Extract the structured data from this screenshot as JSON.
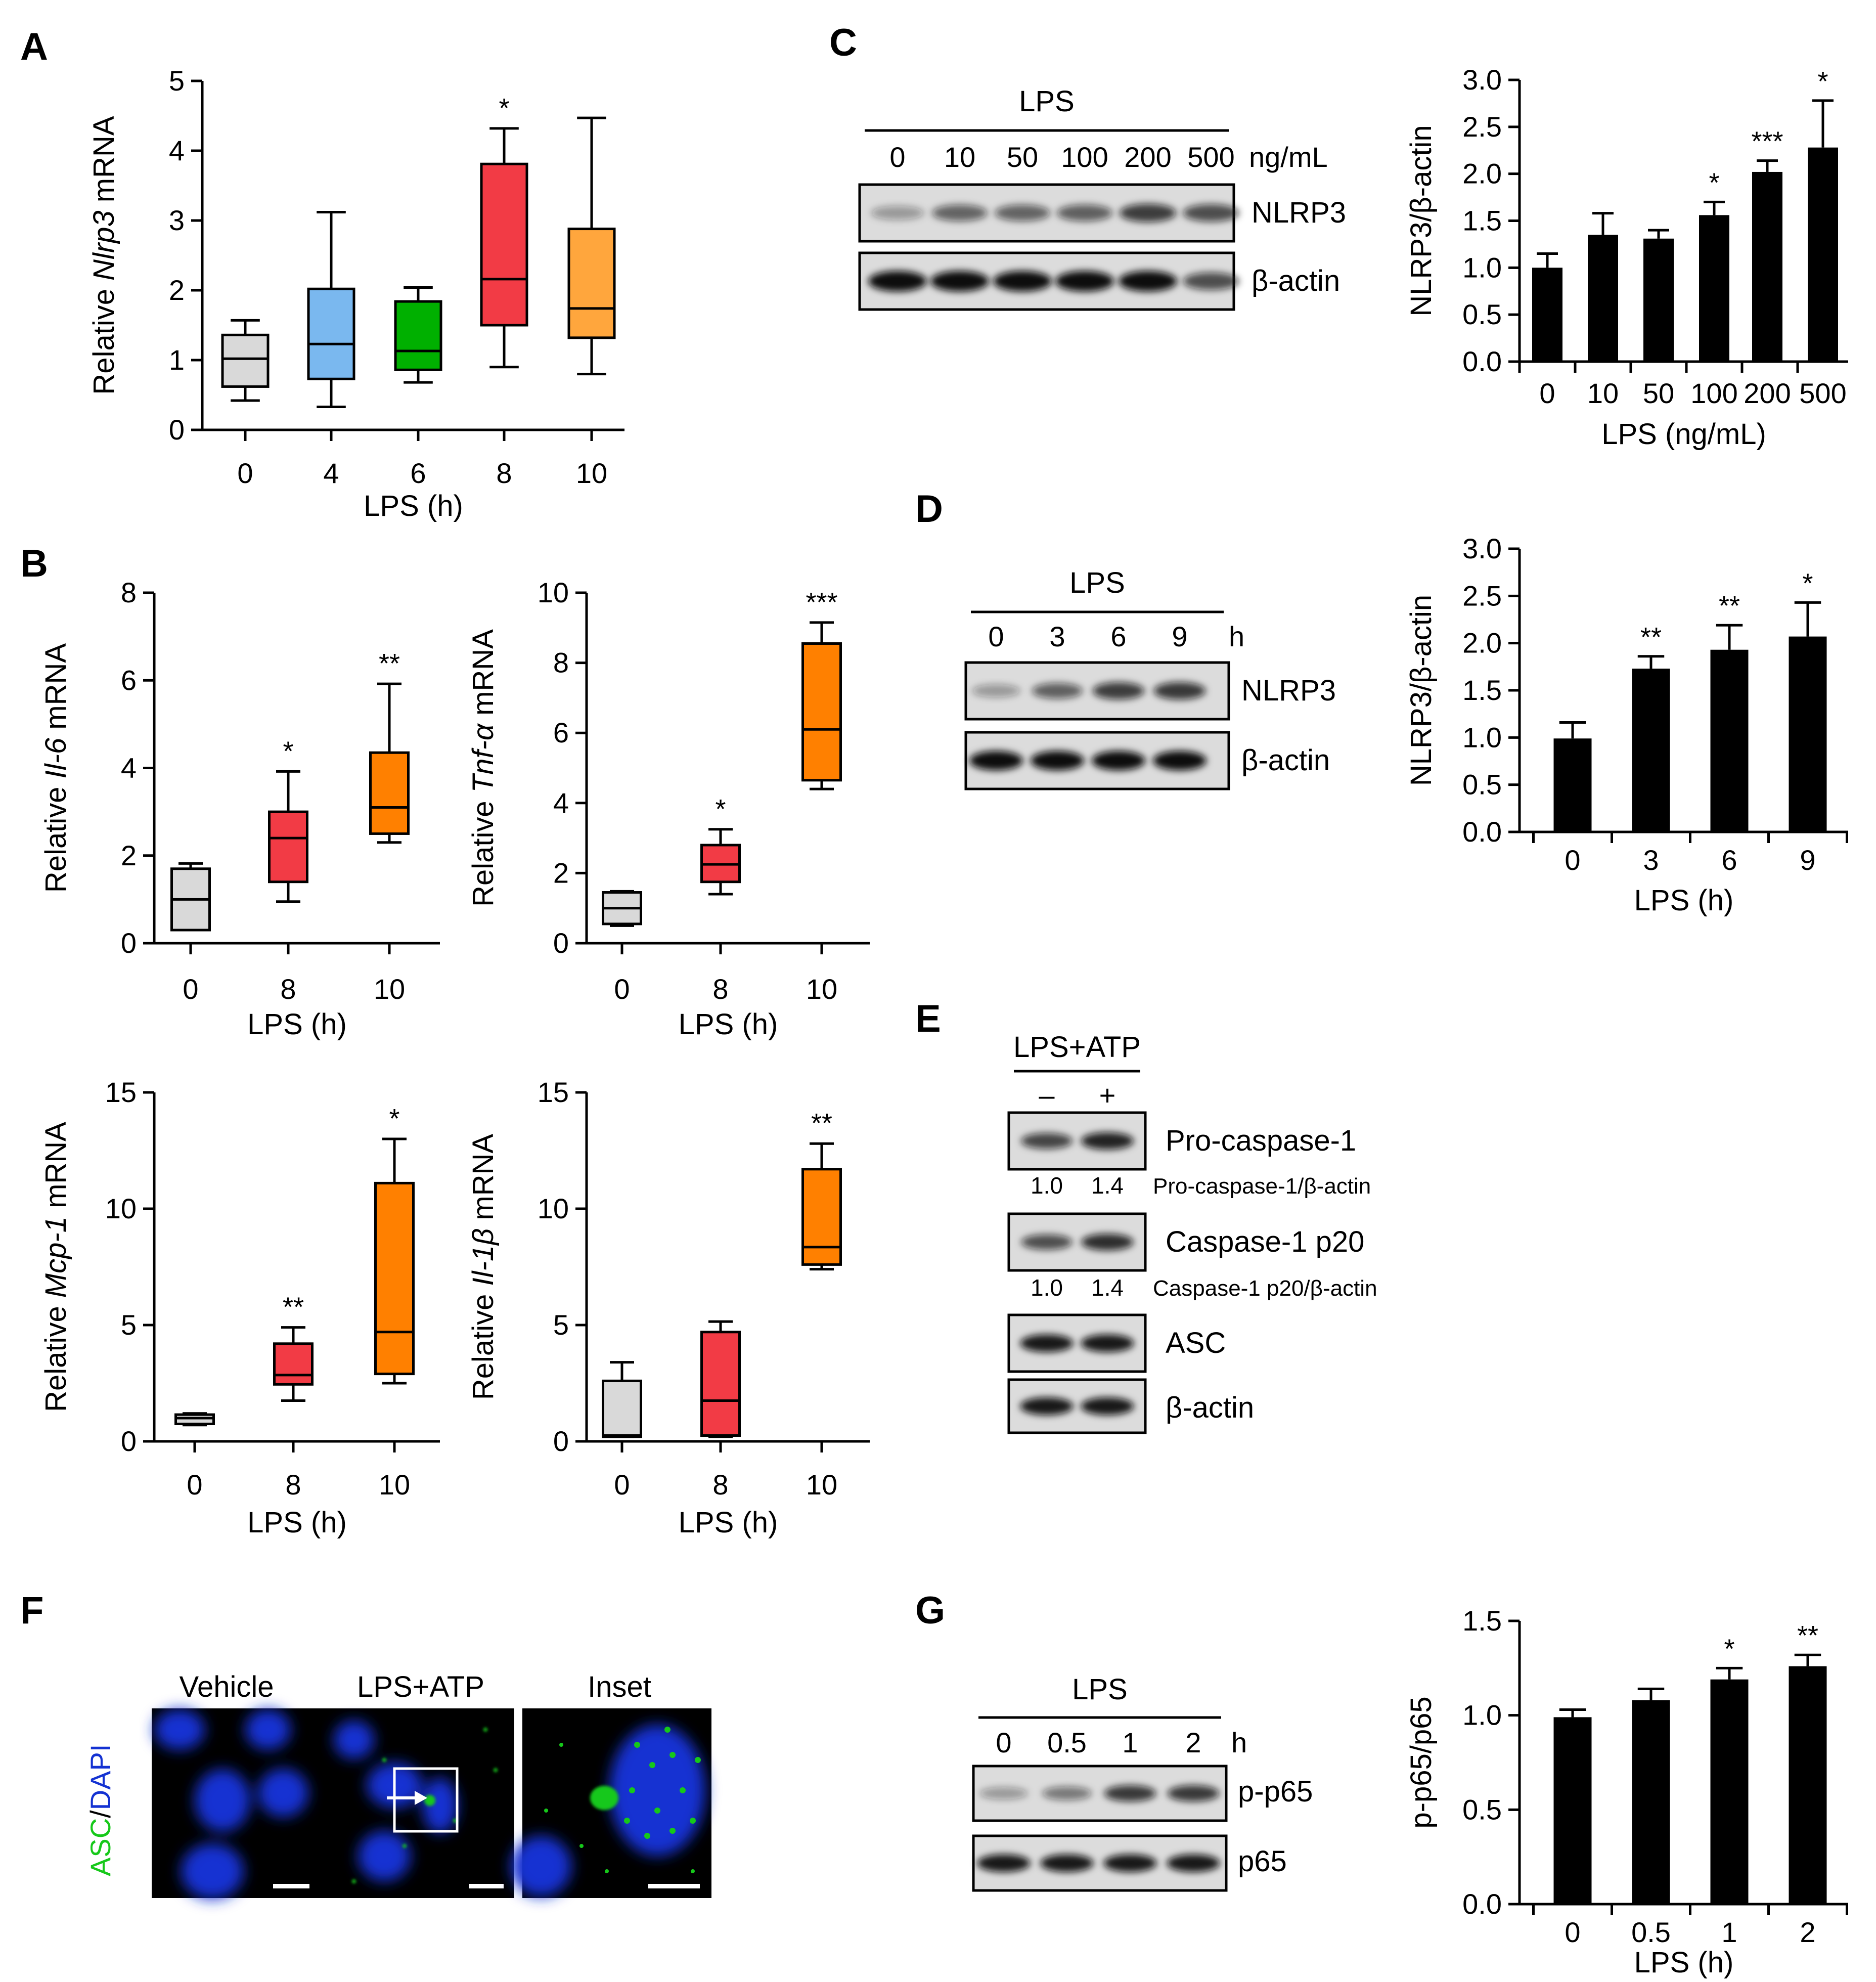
{
  "panels": {
    "A": {
      "letter": "A"
    },
    "B": {
      "letter": "B"
    },
    "C": {
      "letter": "C"
    },
    "D": {
      "letter": "D"
    },
    "E": {
      "letter": "E"
    },
    "F": {
      "letter": "F"
    },
    "G": {
      "letter": "G"
    }
  },
  "chart_data": [
    {
      "id": "A",
      "type": "box",
      "title": "",
      "xlabel": "LPS (h)",
      "ylabel": {
        "pre": "Relative ",
        "italic": "Nlrp3",
        "post": " mRNA"
      },
      "ylim": [
        0,
        5
      ],
      "yticks": [
        "0",
        "1",
        "2",
        "3",
        "4",
        "5"
      ],
      "categories": [
        "0",
        "4",
        "6",
        "8",
        "10"
      ],
      "boxes": [
        {
          "cat": "0",
          "min": 0.42,
          "q1": 0.62,
          "median": 1.02,
          "q3": 1.36,
          "max": 1.57,
          "color": "#d9d9d9",
          "sig": ""
        },
        {
          "cat": "4",
          "min": 0.33,
          "q1": 0.73,
          "median": 1.23,
          "q3": 2.02,
          "max": 3.12,
          "color": "#7ab8ef",
          "sig": ""
        },
        {
          "cat": "6",
          "min": 0.68,
          "q1": 0.86,
          "median": 1.13,
          "q3": 1.84,
          "max": 2.04,
          "color": "#00b000",
          "sig": ""
        },
        {
          "cat": "8",
          "min": 0.9,
          "q1": 1.5,
          "median": 2.16,
          "q3": 3.81,
          "max": 4.32,
          "color": "#f23b45",
          "sig": "*"
        },
        {
          "cat": "10",
          "min": 0.8,
          "q1": 1.32,
          "median": 1.74,
          "q3": 2.88,
          "max": 4.47,
          "color": "#ffa63d",
          "sig": ""
        }
      ]
    },
    {
      "id": "B1",
      "type": "box",
      "xlabel": "LPS (h)",
      "ylabel": {
        "pre": "Relative ",
        "italic": "Il-6",
        "post": " mRNA"
      },
      "ylim": [
        0,
        8
      ],
      "yticks": [
        "0",
        "2",
        "4",
        "6",
        "8"
      ],
      "categories": [
        "0",
        "8",
        "10"
      ],
      "boxes": [
        {
          "cat": "0",
          "min": 0.3,
          "q1": 0.3,
          "median": 1.0,
          "q3": 1.7,
          "max": 1.82,
          "color": "#d9d9d9",
          "sig": ""
        },
        {
          "cat": "8",
          "min": 0.95,
          "q1": 1.4,
          "median": 2.4,
          "q3": 3.0,
          "max": 3.92,
          "color": "#f23b45",
          "sig": "*"
        },
        {
          "cat": "10",
          "min": 2.3,
          "q1": 2.5,
          "median": 3.1,
          "q3": 4.35,
          "max": 5.92,
          "color": "#ff8000",
          "sig": "**"
        }
      ]
    },
    {
      "id": "B2",
      "type": "box",
      "xlabel": "LPS (h)",
      "ylabel": {
        "pre": "Relative ",
        "italic": "Tnf-α",
        "post": " mRNA"
      },
      "ylim": [
        0,
        10
      ],
      "yticks": [
        "0",
        "2",
        "4",
        "6",
        "8",
        "10"
      ],
      "categories": [
        "0",
        "8",
        "10"
      ],
      "boxes": [
        {
          "cat": "0",
          "min": 0.5,
          "q1": 0.55,
          "median": 1.0,
          "q3": 1.45,
          "max": 1.48,
          "color": "#d9d9d9",
          "sig": ""
        },
        {
          "cat": "8",
          "min": 1.4,
          "q1": 1.75,
          "median": 2.25,
          "q3": 2.8,
          "max": 3.25,
          "color": "#f23b45",
          "sig": "*"
        },
        {
          "cat": "10",
          "min": 4.4,
          "q1": 4.65,
          "median": 6.1,
          "q3": 8.55,
          "max": 9.15,
          "color": "#ff8000",
          "sig": "***"
        }
      ]
    },
    {
      "id": "B3",
      "type": "box",
      "xlabel": "LPS (h)",
      "ylabel": {
        "pre": "Relative ",
        "italic": "Mcp-1",
        "post": " mRNA"
      },
      "ylim": [
        0,
        15
      ],
      "yticks": [
        "0",
        "5",
        "10",
        "15"
      ],
      "categories": [
        "0",
        "8",
        "10"
      ],
      "boxes": [
        {
          "cat": "0",
          "min": 0.7,
          "q1": 0.75,
          "median": 1.0,
          "q3": 1.15,
          "max": 1.2,
          "color": "#d9d9d9",
          "sig": ""
        },
        {
          "cat": "8",
          "min": 1.75,
          "q1": 2.45,
          "median": 2.85,
          "q3": 4.2,
          "max": 4.9,
          "color": "#f23b45",
          "sig": "**"
        },
        {
          "cat": "10",
          "min": 2.5,
          "q1": 2.9,
          "median": 4.7,
          "q3": 11.1,
          "max": 13.0,
          "color": "#ff8000",
          "sig": "*"
        }
      ]
    },
    {
      "id": "B4",
      "type": "box",
      "xlabel": "LPS (h)",
      "ylabel": {
        "pre": "Relative ",
        "italic": "Il-1β",
        "post": " mRNA"
      },
      "ylim": [
        0,
        15
      ],
      "yticks": [
        "0",
        "5",
        "10",
        "15"
      ],
      "categories": [
        "0",
        "8",
        "10"
      ],
      "boxes": [
        {
          "cat": "0",
          "min": 0.2,
          "q1": 0.2,
          "median": 0.25,
          "q3": 2.6,
          "max": 3.4,
          "color": "#d9d9d9",
          "sig": ""
        },
        {
          "cat": "8",
          "min": 0.2,
          "q1": 0.25,
          "median": 1.75,
          "q3": 4.7,
          "max": 5.15,
          "color": "#f23b45",
          "sig": ""
        },
        {
          "cat": "10",
          "min": 7.4,
          "q1": 7.6,
          "median": 8.35,
          "q3": 11.7,
          "max": 12.8,
          "color": "#ff8000",
          "sig": "**"
        }
      ]
    },
    {
      "id": "C",
      "type": "bar",
      "xlabel": "LPS (ng/mL)",
      "ylabel": "NLRP3/β-actin",
      "ylim": [
        0,
        3.0
      ],
      "yticks": [
        "0.0",
        "0.5",
        "1.0",
        "1.5",
        "2.0",
        "2.5",
        "3.0"
      ],
      "categories": [
        "0",
        "10",
        "50",
        "100",
        "200",
        "500"
      ],
      "values": [
        1.0,
        1.35,
        1.31,
        1.56,
        2.02,
        2.28
      ],
      "errors": [
        0.15,
        0.23,
        0.09,
        0.14,
        0.12,
        0.5
      ],
      "sig": [
        "",
        "",
        "",
        "*",
        "***",
        "*"
      ]
    },
    {
      "id": "D",
      "type": "bar",
      "xlabel": "LPS (h)",
      "ylabel": "NLRP3/β-actin",
      "ylim": [
        0,
        3.0
      ],
      "yticks": [
        "0.0",
        "0.5",
        "1.0",
        "1.5",
        "2.0",
        "2.5",
        "3.0"
      ],
      "categories": [
        "0",
        "3",
        "6",
        "9"
      ],
      "values": [
        0.99,
        1.73,
        1.93,
        2.07
      ],
      "errors": [
        0.17,
        0.13,
        0.26,
        0.36
      ],
      "sig": [
        "",
        "**",
        "**",
        "*"
      ]
    },
    {
      "id": "G",
      "type": "bar",
      "xlabel": "LPS (h)",
      "ylabel": "p-p65/p65",
      "ylim": [
        0,
        1.5
      ],
      "yticks": [
        "0.0",
        "0.5",
        "1.0",
        "1.5"
      ],
      "categories": [
        "0",
        "0.5",
        "1",
        "2"
      ],
      "values": [
        0.99,
        1.08,
        1.19,
        1.26
      ],
      "errors": [
        0.04,
        0.06,
        0.06,
        0.06
      ],
      "sig": [
        "",
        "",
        "*",
        "**"
      ]
    }
  ],
  "blots": {
    "C": {
      "treatment": "LPS",
      "lanes": [
        "0",
        "10",
        "50",
        "100",
        "200",
        "500"
      ],
      "unit": "ng/mL",
      "rows": [
        {
          "label": "NLRP3",
          "intensity": [
            0.35,
            0.6,
            0.6,
            0.62,
            0.78,
            0.7
          ]
        },
        {
          "label": "β-actin",
          "intensity": [
            1,
            1,
            1,
            1,
            1,
            0.7
          ]
        }
      ]
    },
    "D": {
      "treatment": "LPS",
      "lanes": [
        "0",
        "3",
        "6",
        "9"
      ],
      "unit": "h",
      "rows": [
        {
          "label": "NLRP3",
          "intensity": [
            0.35,
            0.62,
            0.78,
            0.8
          ]
        },
        {
          "label": "β-actin",
          "intensity": [
            1,
            1,
            1,
            1
          ]
        }
      ]
    },
    "E": {
      "treatment": "LPS+ATP",
      "lanes": [
        "–",
        "+"
      ],
      "rows": [
        {
          "label": "Pro-caspase-1",
          "intensity": [
            0.75,
            0.9
          ],
          "ratios": [
            "1.0",
            "1.4"
          ],
          "ratio_label": "Pro-caspase-1/β-actin"
        },
        {
          "label": "Caspase-1  p20",
          "intensity": [
            0.7,
            0.85
          ],
          "ratios": [
            "1.0",
            "1.4"
          ],
          "ratio_label": "Caspase-1 p20/β-actin"
        },
        {
          "label": "ASC",
          "intensity": [
            0.95,
            0.95
          ]
        },
        {
          "label": "β-actin",
          "intensity": [
            0.95,
            0.95
          ]
        }
      ]
    },
    "G": {
      "treatment": "LPS",
      "lanes": [
        "0",
        "0.5",
        "1",
        "2"
      ],
      "unit": "h",
      "rows": [
        {
          "label": "p-p65",
          "intensity": [
            0.35,
            0.5,
            0.8,
            0.8
          ]
        },
        {
          "label": "p65",
          "intensity": [
            0.95,
            0.95,
            0.95,
            0.95
          ]
        }
      ]
    }
  },
  "microscopy": {
    "panels": [
      "Vehicle",
      "LPS+ATP",
      "Inset"
    ],
    "stain_green": "ASC",
    "stain_sep": "/",
    "stain_blue": "DAPI",
    "green": "#16c81a",
    "blue": "#1432d2"
  }
}
